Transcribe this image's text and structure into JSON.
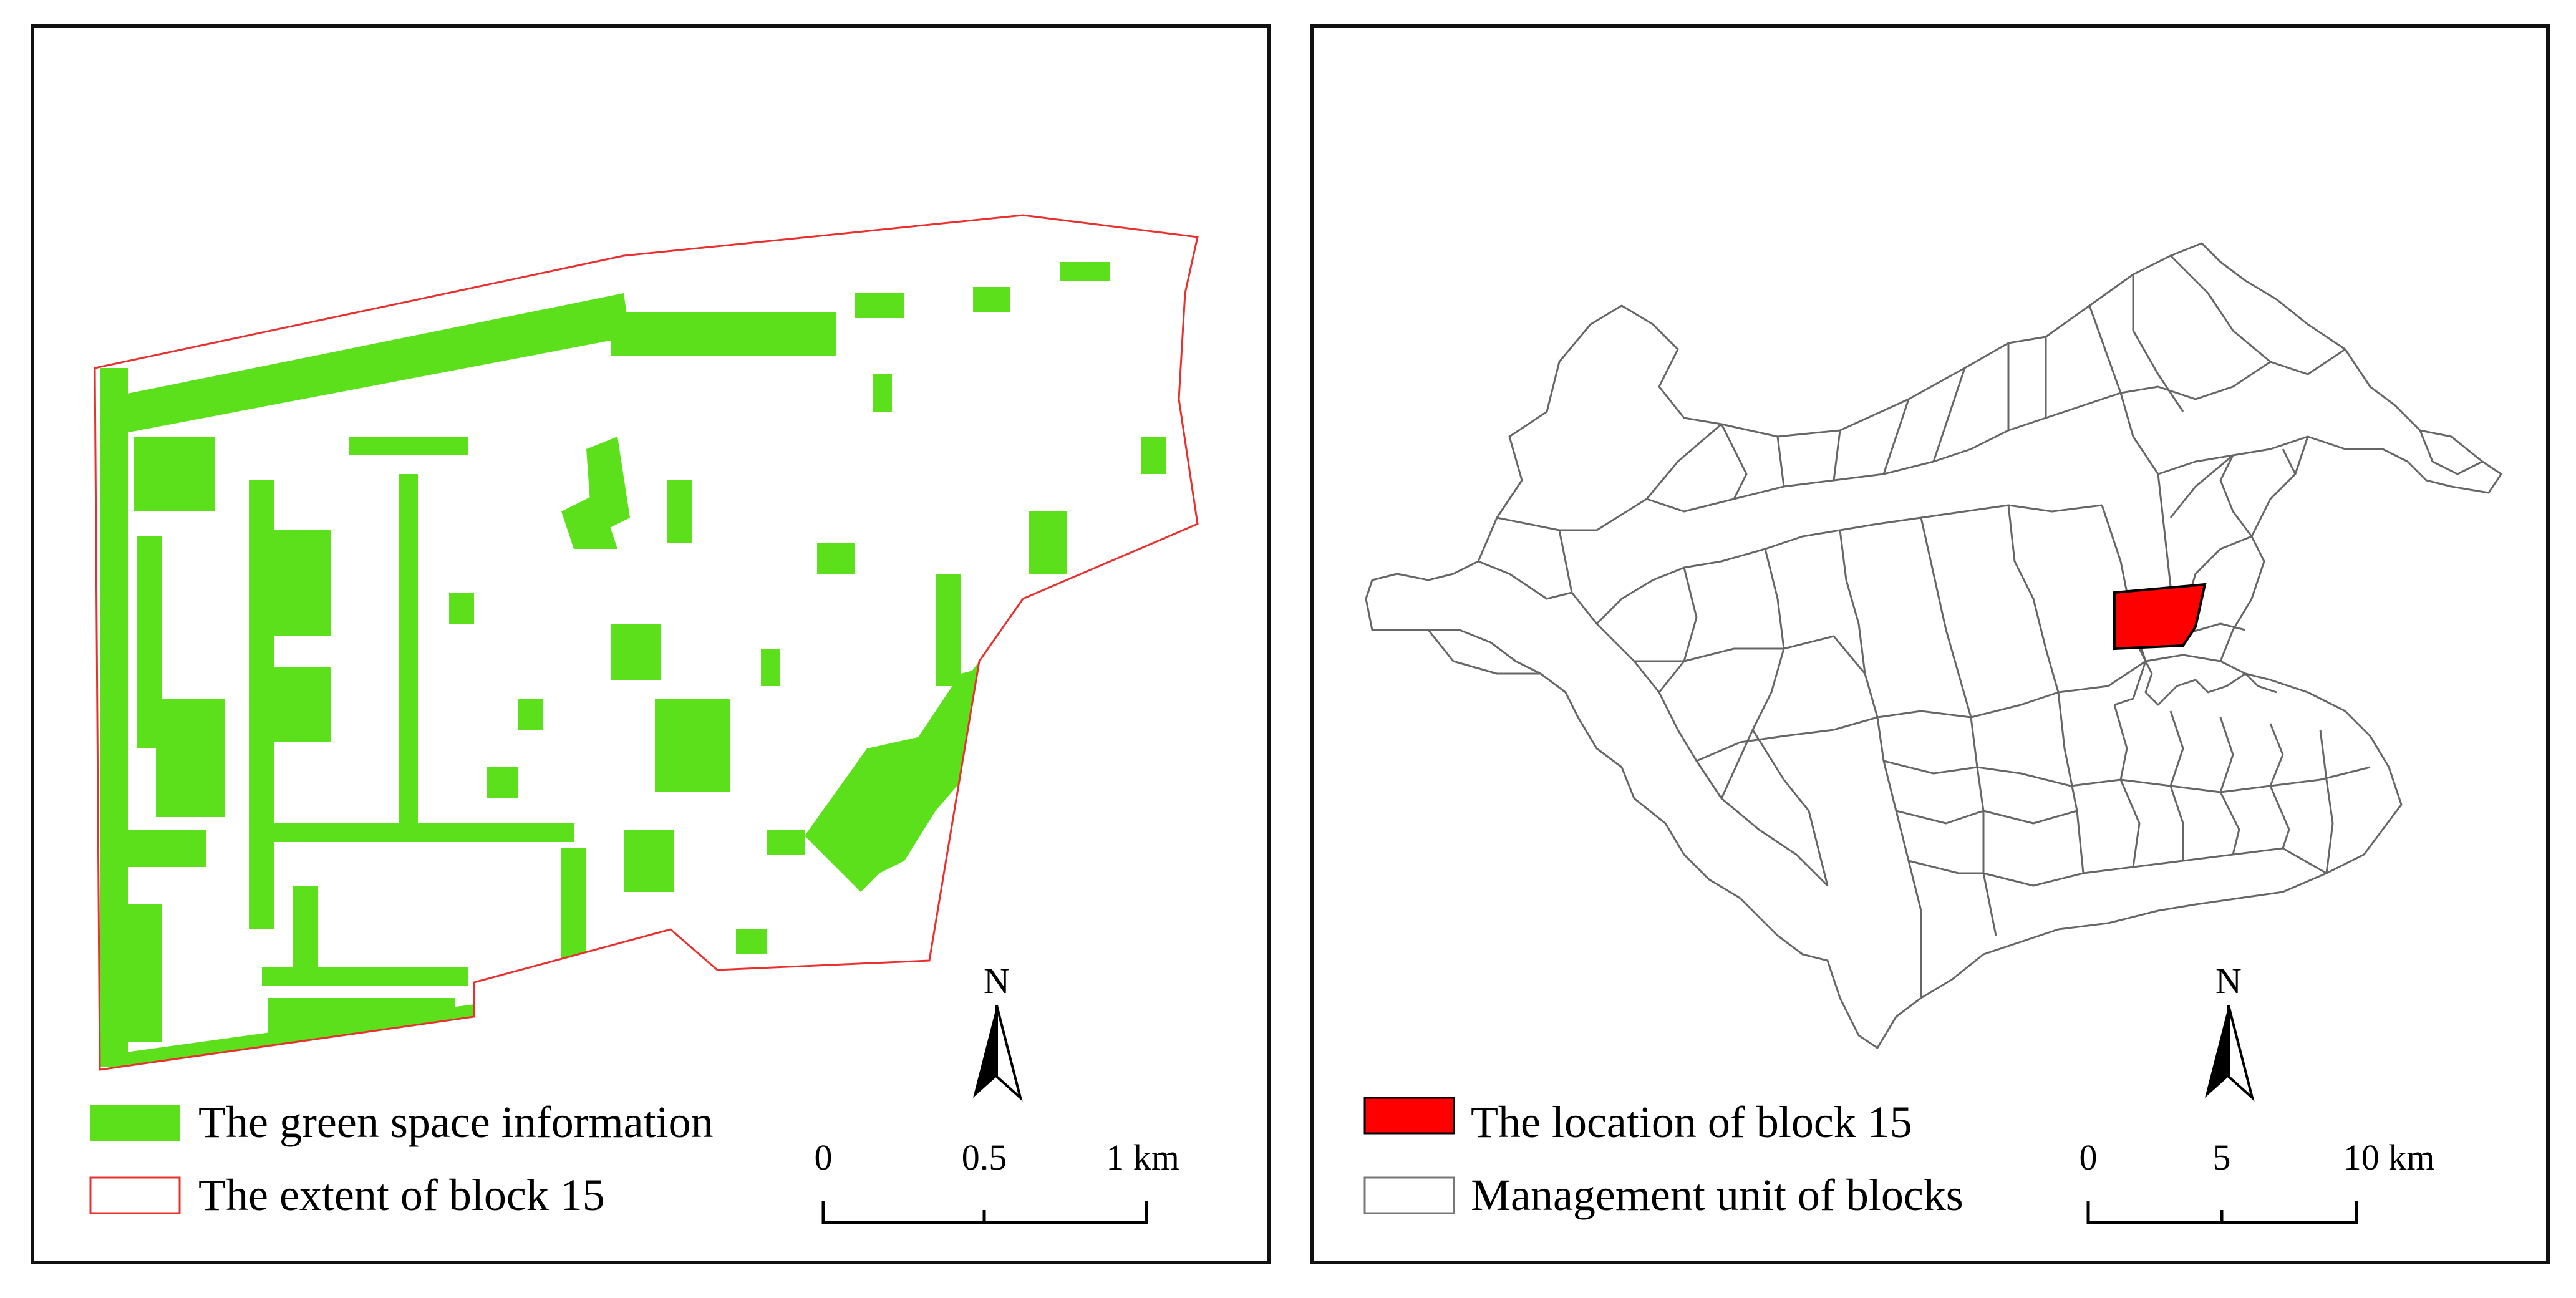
{
  "left_panel": {
    "legend": {
      "green_label": "The green space information",
      "extent_label": "The extent of block 15"
    },
    "north_arrow": "N",
    "scale": {
      "ticks": [
        "0",
        "0.5",
        "1 km"
      ]
    }
  },
  "right_panel": {
    "legend": {
      "location_label": "The location of block 15",
      "management_label": "Management unit of blocks"
    },
    "north_arrow": "N",
    "scale": {
      "ticks": [
        "0",
        "5",
        "10 km"
      ]
    }
  },
  "colors": {
    "green_space": "#5ce01c",
    "block_extent": "#e8312f",
    "block_location": "#ff0000",
    "unit_border": "#666666",
    "frame": "#111111"
  }
}
